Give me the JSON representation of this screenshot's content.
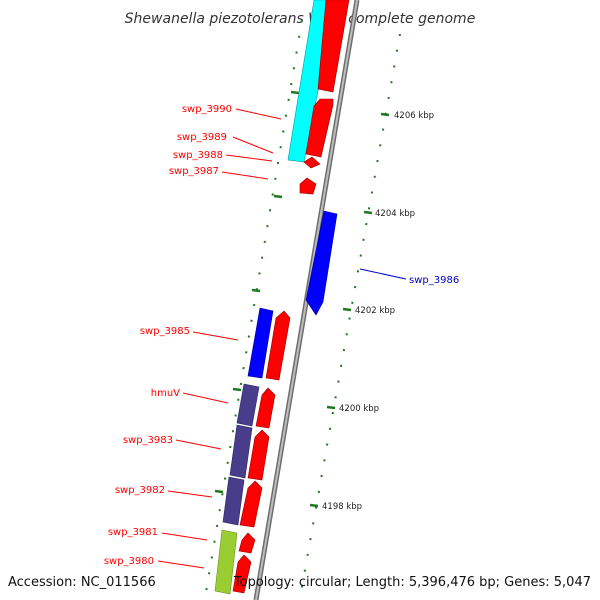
{
  "title": "Shewanella piezotolerans WP3, complete genome",
  "accession": "Accession: NC_011566",
  "topology": "Topology: circular; Length: 5,396,476 bp; Genes: 5,047",
  "colors": {
    "forward_gene": "#ff0000",
    "reverse_gene": "#0000ff",
    "backbone": "#8c8c8c",
    "tick": "#1e7a1e",
    "cog_cyan": "#00ffff",
    "cog_slate": "#483d8b",
    "cog_lime": "#9acd32"
  },
  "scale_labels": [
    "4206 kbp",
    "4204 kbp",
    "4202 kbp",
    "4200 kbp",
    "4198 kbp"
  ],
  "gene_labels": [
    {
      "name": "swp_3990",
      "strand": "forward"
    },
    {
      "name": "swp_3989",
      "strand": "forward"
    },
    {
      "name": "swp_3988",
      "strand": "forward"
    },
    {
      "name": "swp_3987",
      "strand": "forward"
    },
    {
      "name": "swp_3986",
      "strand": "reverse"
    },
    {
      "name": "swp_3985",
      "strand": "forward"
    },
    {
      "name": "hmuV",
      "strand": "forward"
    },
    {
      "name": "swp_3983",
      "strand": "forward"
    },
    {
      "name": "swp_3982",
      "strand": "forward"
    },
    {
      "name": "swp_3981",
      "strand": "forward"
    },
    {
      "name": "swp_3980",
      "strand": "forward"
    }
  ]
}
